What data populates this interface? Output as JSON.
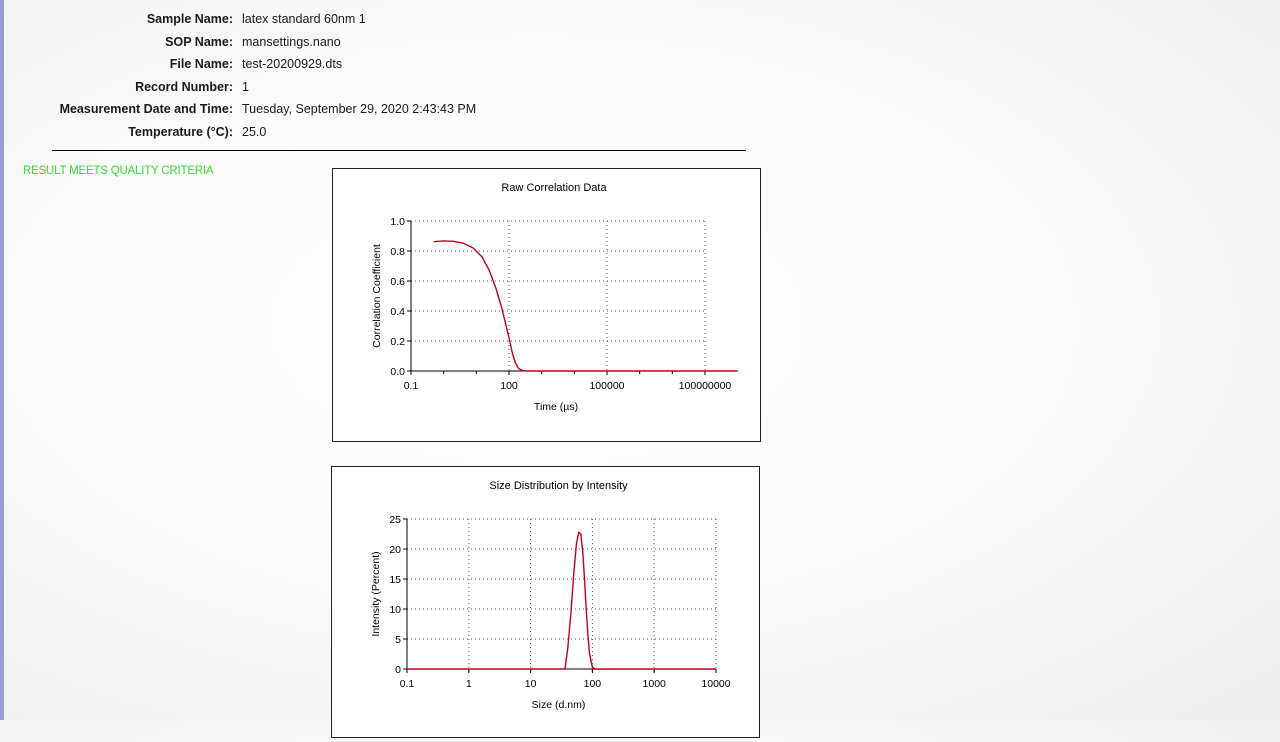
{
  "report": {
    "fields": [
      {
        "label": "Sample Name:",
        "value": "latex standard 60nm 1"
      },
      {
        "label": "SOP Name:",
        "value": "mansettings.nano"
      },
      {
        "label": "File Name:",
        "value": "test-20200929.dts"
      },
      {
        "label": "Record Number:",
        "value": "1"
      },
      {
        "label": "Measurement Date and Time:",
        "value": "Tuesday, September 29, 2020 2:43:43 PM"
      },
      {
        "label": "Temperature (°C):",
        "value": "25.0"
      }
    ],
    "quality_status": "RESULT MEETS QUALITY CRITERIA",
    "status_color": "#33dd33",
    "accent_rule_color": "#9a9ad8"
  },
  "chart_data": [
    {
      "type": "line",
      "title": "Raw Correlation Data",
      "xlabel": "Time (µs)",
      "ylabel": "Correlation Coefficient",
      "x_scale": "log",
      "xlim": [
        0.1,
        100000000
      ],
      "ylim": [
        0,
        1.0
      ],
      "x_ticks": [
        "0.1",
        "100",
        "100000",
        "100000000"
      ],
      "y_ticks": [
        "0.0",
        "0.2",
        "0.4",
        "0.6",
        "0.8",
        "1.0"
      ],
      "grid": true,
      "line_color": "#c00020",
      "series": [
        {
          "x": [
            0.5,
            1,
            2,
            4,
            8,
            15,
            25,
            40,
            60,
            80,
            100,
            130,
            160,
            200,
            250,
            320,
            400,
            600,
            1000000000
          ],
          "y": [
            0.862,
            0.867,
            0.865,
            0.852,
            0.82,
            0.76,
            0.67,
            0.55,
            0.42,
            0.31,
            0.22,
            0.11,
            0.05,
            0.015,
            0.005,
            0.0,
            0.0,
            0.0,
            0.0
          ]
        }
      ]
    },
    {
      "type": "line",
      "title": "Size Distribution by Intensity",
      "xlabel": "Size (d.nm)",
      "ylabel": "Intensity (Percent)",
      "x_scale": "log",
      "xlim": [
        0.1,
        10000
      ],
      "ylim": [
        0,
        25
      ],
      "x_ticks": [
        "0.1",
        "1",
        "10",
        "100",
        "1000",
        "10000"
      ],
      "y_ticks": [
        "0",
        "5",
        "10",
        "15",
        "20",
        "25"
      ],
      "grid": true,
      "line_color": "#c00020",
      "series": [
        {
          "x": [
            0.1,
            36,
            40,
            45,
            50,
            55,
            60,
            65,
            70,
            75,
            80,
            85,
            90,
            100,
            110,
            10000
          ],
          "y": [
            0,
            0,
            3.5,
            9.5,
            16.0,
            20.8,
            22.8,
            22.5,
            19.5,
            14.5,
            9.5,
            5.5,
            2.5,
            0.3,
            0,
            0
          ]
        }
      ]
    }
  ]
}
